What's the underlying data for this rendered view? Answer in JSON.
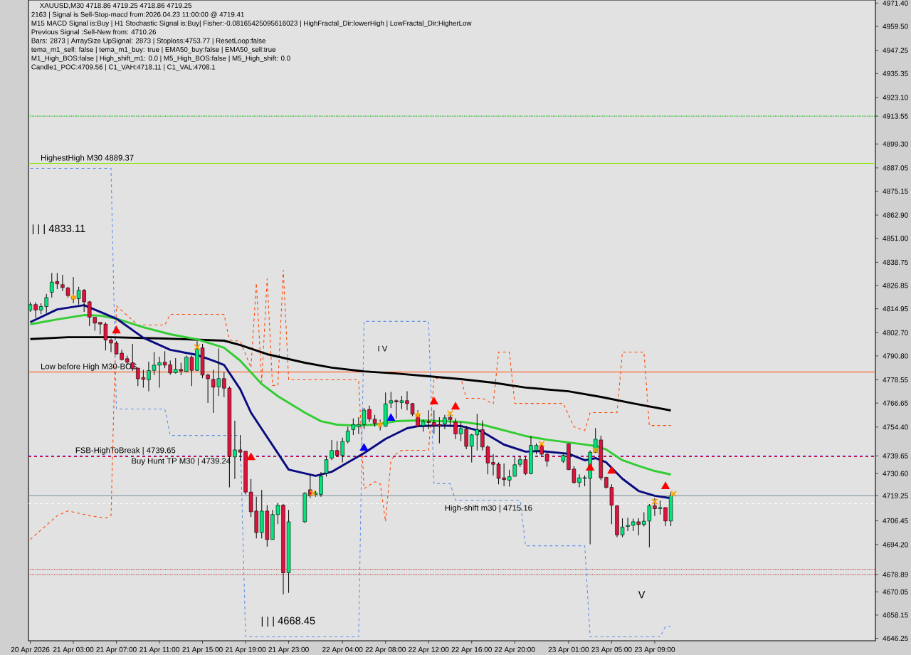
{
  "chart_data": {
    "type": "candlestick",
    "title": "XAUUSD,M30 4718.86 4719.25 4718.86 4719.25",
    "annotations": [
      "2163 | Signal is Sell-Stop-macd from:2026.04.23 11:00:00 @ 4719.41",
      "M15 MACD Signal is:Buy | H1 Stochastic Signal is:Buy| Fisher:-0.08165425095616023 | HighFractal_Dir:lowerHigh | LowFractal_Dir:HigherLow",
      "Previous Signal :Sell-New from: 4710.26",
      "Bars: 2873 | ArraySize UpSignal: 2873 | Stoploss:4753.77 | ResetLoop:false",
      "tema_m1_sell: false | tema_m1_buy: true | EMA50_buy:false | EMA50_sell:true",
      "M1_High_BOS:false | High_shift_m1: 0.0 | M5_High_BOS:false | M5_High_shift: 0.0",
      "Candle1_POC:4709.56 | C1_VAH:4718.11 | C1_VAL:4708.1",
      "| | | 4833.11",
      "| | | 4668.45",
      "I V",
      "V"
    ],
    "x": [
      "2026-04-20T23:00",
      "2026-04-20T23:30",
      "2026-04-21T00:00",
      "2026-04-21T00:30",
      "2026-04-21T01:00",
      "2026-04-21T01:30",
      "2026-04-21T02:00",
      "2026-04-21T02:30",
      "2026-04-21T03:00",
      "2026-04-21T03:30",
      "2026-04-21T04:00",
      "2026-04-21T04:30",
      "2026-04-21T05:00",
      "2026-04-21T05:30",
      "2026-04-21T06:00",
      "2026-04-21T06:30",
      "2026-04-21T07:00",
      "2026-04-21T07:30",
      "2026-04-21T08:00",
      "2026-04-21T08:30",
      "2026-04-21T09:00",
      "2026-04-21T09:30",
      "2026-04-21T10:00",
      "2026-04-21T10:30",
      "2026-04-21T11:00",
      "2026-04-21T11:30",
      "2026-04-21T12:00",
      "2026-04-21T12:30",
      "2026-04-21T13:00",
      "2026-04-21T13:30",
      "2026-04-21T14:00",
      "2026-04-21T14:30",
      "2026-04-21T15:00",
      "2026-04-21T15:30",
      "2026-04-21T16:00",
      "2026-04-21T16:30",
      "2026-04-21T17:00",
      "2026-04-21T17:30",
      "2026-04-21T18:00",
      "2026-04-21T18:30",
      "2026-04-21T19:00",
      "2026-04-21T19:30",
      "2026-04-21T20:00",
      "2026-04-21T20:30",
      "2026-04-21T21:00",
      "2026-04-21T21:30",
      "2026-04-21T22:00",
      "2026-04-21T22:30",
      "2026-04-21T23:00",
      "2026-04-22T00:30",
      "2026-04-22T01:00",
      "2026-04-22T01:30",
      "2026-04-22T02:00",
      "2026-04-22T02:30",
      "2026-04-22T03:00",
      "2026-04-22T03:30",
      "2026-04-22T04:00",
      "2026-04-22T04:30",
      "2026-04-22T05:00",
      "2026-04-22T05:30",
      "2026-04-22T06:00",
      "2026-04-22T06:30",
      "2026-04-22T07:00",
      "2026-04-22T07:30",
      "2026-04-22T08:00",
      "2026-04-22T08:30",
      "2026-04-22T09:00",
      "2026-04-22T09:30",
      "2026-04-22T10:00",
      "2026-04-22T10:30",
      "2026-04-22T11:00",
      "2026-04-22T11:30",
      "2026-04-22T12:00",
      "2026-04-22T12:30",
      "2026-04-22T13:00",
      "2026-04-22T13:30",
      "2026-04-22T14:00",
      "2026-04-22T14:30",
      "2026-04-22T15:00",
      "2026-04-22T15:30",
      "2026-04-22T16:00",
      "2026-04-22T16:30",
      "2026-04-22T17:00",
      "2026-04-22T17:30",
      "2026-04-22T18:00",
      "2026-04-22T18:30",
      "2026-04-22T19:00",
      "2026-04-22T19:30",
      "2026-04-22T20:00",
      "2026-04-22T20:30",
      "2026-04-22T21:00",
      "2026-04-22T21:30",
      "2026-04-22T22:00",
      "2026-04-22T22:30",
      "2026-04-22T23:00",
      "2026-04-23T00:30",
      "2026-04-23T01:00",
      "2026-04-23T01:30",
      "2026-04-23T02:00",
      "2026-04-23T02:30",
      "2026-04-23T03:00",
      "2026-04-23T03:30",
      "2026-04-23T04:00",
      "2026-04-23T04:30",
      "2026-04-23T05:00",
      "2026-04-23T05:30",
      "2026-04-23T06:00",
      "2026-04-23T06:30",
      "2026-04-23T07:00",
      "2026-04-23T07:30",
      "2026-04-23T08:00",
      "2026-04-23T08:30",
      "2026-04-23T09:00",
      "2026-04-23T09:30",
      "2026-04-23T10:00",
      "2026-04-23T10:30"
    ],
    "ohlc": [
      [
        4814.1,
        4818.3,
        4813.4,
        4817.1
      ],
      [
        4817.1,
        4818.3,
        4810.4,
        4814.3
      ],
      [
        4814.3,
        4817.7,
        4812.2,
        4816.1
      ],
      [
        4816.1,
        4822.6,
        4812.8,
        4820.7
      ],
      [
        4823.4,
        4833.2,
        4820.7,
        4828.6
      ],
      [
        4828.9,
        4833.2,
        4825.0,
        4827.7
      ],
      [
        4827.3,
        4832.3,
        4824.0,
        4825.8
      ],
      [
        4825.6,
        4826.2,
        4820.7,
        4821.7
      ],
      [
        4821.3,
        4831.1,
        4817.7,
        4820.1
      ],
      [
        4820.1,
        4826.2,
        4817.1,
        4824.4
      ],
      [
        4824.4,
        4825.0,
        4813.4,
        4818.5
      ],
      [
        4818.5,
        4818.9,
        4806.1,
        4810.6
      ],
      [
        4810.6,
        4810.6,
        4803.7,
        4807.6
      ],
      [
        4808.0,
        4808.0,
        4801.9,
        4807.1
      ],
      [
        4807.1,
        4808.0,
        4793.6,
        4798.9
      ],
      [
        4798.9,
        4799.7,
        4792.8,
        4797.4
      ],
      [
        4797.4,
        4798.3,
        4791.6,
        4791.8
      ],
      [
        4792.2,
        4794.0,
        4788.5,
        4788.9
      ],
      [
        4789.4,
        4791.0,
        4786.1,
        4787.6
      ],
      [
        4787.3,
        4797.0,
        4783.1,
        4784.3
      ],
      [
        4784.5,
        4784.9,
        4775.4,
        4779.1
      ],
      [
        4779.7,
        4783.7,
        4774.6,
        4778.8
      ],
      [
        4778.5,
        4787.9,
        4772.7,
        4783.3
      ],
      [
        4783.4,
        4792.8,
        4781.0,
        4786.1
      ],
      [
        4786.1,
        4790.4,
        4774.6,
        4787.3
      ],
      [
        4787.6,
        4793.2,
        4784.5,
        4786.1
      ],
      [
        4786.3,
        4788.5,
        4781.2,
        4782.1
      ],
      [
        4782.2,
        4789.7,
        4781.8,
        4783.9
      ],
      [
        4783.9,
        4787.3,
        4780.9,
        4783.1
      ],
      [
        4782.8,
        4791.0,
        4782.5,
        4790.1
      ],
      [
        4790.1,
        4791.0,
        4775.4,
        4783.4
      ],
      [
        4783.4,
        4798.3,
        4783.1,
        4794.4
      ],
      [
        4794.9,
        4797.0,
        4779.4,
        4781.0
      ],
      [
        4781.0,
        4781.8,
        4766.7,
        4779.1
      ],
      [
        4778.8,
        4783.7,
        4761.6,
        4774.8
      ],
      [
        4775.0,
        4794.6,
        4770.3,
        4779.2
      ],
      [
        4779.2,
        4782.5,
        4769.7,
        4774.3
      ],
      [
        4774.3,
        4775.2,
        4723.5,
        4739.3
      ],
      [
        4739.1,
        4757.6,
        4727.8,
        4742.7
      ],
      [
        4742.7,
        4750.3,
        4736.9,
        4741.5
      ],
      [
        4742.0,
        4742.0,
        4719.9,
        4721.1
      ],
      [
        4721.1,
        4727.8,
        4708.3,
        4711.0
      ],
      [
        4711.4,
        4718.7,
        4697.4,
        4700.4
      ],
      [
        4700.4,
        4722.3,
        4697.4,
        4711.4
      ],
      [
        4711.4,
        4714.4,
        4693.2,
        4696.8
      ],
      [
        4696.8,
        4712.0,
        4696.8,
        4709.6
      ],
      [
        4709.6,
        4715.6,
        4704.7,
        4714.4
      ],
      [
        4714.4,
        4715.0,
        4668.8,
        4679.8
      ],
      [
        4679.8,
        4712.0,
        4669.5,
        4705.9
      ],
      [
        4705.9,
        4721.1,
        4705.3,
        4720.5
      ],
      [
        4722.3,
        4729.6,
        4718.1,
        4719.3
      ],
      [
        4719.9,
        4721.7,
        4718.7,
        4720.7
      ],
      [
        4719.9,
        4731.4,
        4718.7,
        4729.2
      ],
      [
        4730.8,
        4739.3,
        4729.0,
        4737.7
      ],
      [
        4738.5,
        4747.8,
        4737.5,
        4742.4
      ],
      [
        4742.4,
        4747.2,
        4739.3,
        4739.9
      ],
      [
        4739.9,
        4749.0,
        4736.3,
        4747.0
      ],
      [
        4747.0,
        4754.5,
        4746.0,
        4752.4
      ],
      [
        4753.1,
        4758.8,
        4750.3,
        4755.7
      ],
      [
        4754.5,
        4759.4,
        4750.9,
        4755.7
      ],
      [
        4755.7,
        4764.2,
        4753.3,
        4763.0
      ],
      [
        4763.4,
        4765.4,
        4756.9,
        4758.5
      ],
      [
        4758.4,
        4760.6,
        4754.5,
        4756.3
      ],
      [
        4756.3,
        4758.2,
        4752.7,
        4755.5
      ],
      [
        4754.8,
        4772.1,
        4754.5,
        4766.3
      ],
      [
        4766.7,
        4772.4,
        4764.2,
        4767.9
      ],
      [
        4767.9,
        4768.5,
        4758.8,
        4767.3
      ],
      [
        4766.9,
        4770.3,
        4763.6,
        4767.9
      ],
      [
        4767.9,
        4772.7,
        4763.0,
        4766.4
      ],
      [
        4766.4,
        4766.7,
        4760.0,
        4761.0
      ],
      [
        4760.8,
        4763.0,
        4754.5,
        4754.8
      ],
      [
        4755.1,
        4758.2,
        4752.1,
        4757.2
      ],
      [
        4757.2,
        4763.0,
        4753.3,
        4756.7
      ],
      [
        4756.7,
        4763.0,
        4750.9,
        4755.1
      ],
      [
        4755.7,
        4759.4,
        4746.0,
        4754.9
      ],
      [
        4756.0,
        4760.6,
        4753.3,
        4759.1
      ],
      [
        4759.4,
        4760.6,
        4754.5,
        4758.2
      ],
      [
        4756.9,
        4758.8,
        4748.2,
        4750.9
      ],
      [
        4750.9,
        4756.9,
        4747.2,
        4753.7
      ],
      [
        4753.3,
        4755.1,
        4743.0,
        4744.5
      ],
      [
        4744.5,
        4750.9,
        4736.3,
        4750.4
      ],
      [
        4750.4,
        4761.2,
        4742.4,
        4753.1
      ],
      [
        4753.1,
        4757.8,
        4742.4,
        4744.2
      ],
      [
        4744.2,
        4745.0,
        4730.2,
        4736.0
      ],
      [
        4736.3,
        4740.5,
        4729.6,
        4735.3
      ],
      [
        4735.4,
        4736.3,
        4725.1,
        4728.1
      ],
      [
        4728.4,
        4735.7,
        4724.1,
        4727.5
      ],
      [
        4727.2,
        4732.6,
        4723.9,
        4729.0
      ],
      [
        4729.2,
        4739.3,
        4729.0,
        4735.1
      ],
      [
        4735.3,
        4739.3,
        4733.9,
        4737.7
      ],
      [
        4737.7,
        4739.3,
        4729.8,
        4730.6
      ],
      [
        4730.6,
        4749.7,
        4730.2,
        4745.0
      ],
      [
        4742.4,
        4746.0,
        4740.5,
        4745.0
      ],
      [
        4745.0,
        4746.0,
        4739.3,
        4740.5
      ],
      [
        4740.5,
        4741.1,
        4734.1,
        4736.9
      ],
      [
        4736.9,
        4741.1,
        4736.0,
        4739.9
      ],
      [
        4745.8,
        4746.0,
        4732.4,
        4732.6
      ],
      [
        4732.9,
        4734.5,
        4725.4,
        4726.0
      ],
      [
        4726.0,
        4730.2,
        4723.5,
        4728.4
      ],
      [
        4728.1,
        4729.6,
        4724.1,
        4728.5
      ],
      [
        4728.1,
        4742.4,
        4694.4,
        4741.5
      ],
      [
        4741.5,
        4753.9,
        4741.1,
        4748.2
      ],
      [
        4747.8,
        4750.0,
        4727.2,
        4728.4
      ],
      [
        4728.6,
        4729.0,
        4722.9,
        4723.5
      ],
      [
        4723.5,
        4725.1,
        4704.7,
        4714.4
      ],
      [
        4714.1,
        4714.4,
        4698.0,
        4699.2
      ],
      [
        4699.2,
        4707.7,
        4698.0,
        4703.2
      ],
      [
        4703.5,
        4708.0,
        4701.1,
        4704.1
      ],
      [
        4704.1,
        4707.5,
        4701.1,
        4705.9
      ],
      [
        4705.9,
        4707.7,
        4698.9,
        4704.5
      ],
      [
        4704.5,
        4710.8,
        4703.5,
        4706.2
      ],
      [
        4706.3,
        4715.0,
        4692.8,
        4714.1
      ],
      [
        4714.1,
        4718.1,
        4708.9,
        4712.6
      ],
      [
        4712.6,
        4716.8,
        4709.6,
        4713.2
      ],
      [
        4713.2,
        4713.2,
        4703.7,
        4706.3
      ],
      [
        4706.3,
        4721.1,
        4703.7,
        4719.25
      ]
    ],
    "series": [
      {
        "type": "line",
        "color": "#FF4500",
        "line_style": "dashed",
        "x": [
          "2026-04-20T23:00",
          "2026-04-21T00:00",
          "2026-04-21T01:30",
          "2026-04-21T02:30",
          "2026-04-21T04:30",
          "2026-04-21T06:00",
          "2026-04-21T06:30",
          "2026-04-21T07:00",
          "2026-04-21T09:00",
          "2026-04-21T11:30",
          "2026-04-21T12:00",
          "2026-04-21T17:00",
          "2026-04-21T17:30",
          "2026-04-21T18:30",
          "2026-04-21T19:30",
          "2026-04-21T20:00",
          "2026-04-21T20:30",
          "2026-04-21T21:00",
          "2026-04-21T21:30",
          "2026-04-21T22:00",
          "2026-04-21T22:30",
          "2026-04-21T23:00",
          "2026-04-22T05:30",
          "2026-04-22T06:00",
          "2026-04-22T07:00",
          "2026-04-22T07:30",
          "2026-04-22T08:00",
          "2026-04-22T08:30",
          "2026-04-22T09:00",
          "2026-04-22T09:30",
          "2026-04-22T12:00",
          "2026-04-22T12:30",
          "2026-04-22T15:00",
          "2026-04-22T15:30",
          "2026-04-22T17:00",
          "2026-04-22T18:00",
          "2026-04-22T18:30",
          "2026-04-22T19:30",
          "2026-04-22T20:00",
          "2026-04-23T00:30",
          "2026-04-23T01:30",
          "2026-04-23T02:30",
          "2026-04-23T03:00",
          "2026-04-23T05:30",
          "2026-04-23T06:00",
          "2026-04-23T08:00",
          "2026-04-23T08:30",
          "2026-04-23T10:30"
        ],
        "values": [
          4696.9,
          4701.7,
          4709.0,
          4711.5,
          4709.0,
          4707.9,
          4709.0,
          4816.5,
          4806.6,
          4806.6,
          4812.1,
          4812.1,
          4799.0,
          4798.3,
          4784.8,
          4828.1,
          4777.5,
          4830.3,
          4775.7,
          4775.7,
          4834.7,
          4778.6,
          4778.6,
          4722.8,
          4726.4,
          4725.4,
          4706.0,
          4737.4,
          4740.7,
          4742.5,
          4742.5,
          4779.3,
          4779.3,
          4769.1,
          4769.1,
          4766.2,
          4792.8,
          4792.8,
          4766.5,
          4766.5,
          4754.5,
          4752.7,
          4761.8,
          4761.8,
          4792.8,
          4792.8,
          4755.2,
          4755.2
        ]
      },
      {
        "type": "line",
        "color": "#5B8FE8",
        "line_style": "dashed",
        "x": [
          "2026-04-20T23:00",
          "2026-04-21T06:30",
          "2026-04-21T07:00",
          "2026-04-21T11:30",
          "2026-04-21T12:00",
          "2026-04-21T18:30",
          "2026-04-21T19:00",
          "2026-04-22T05:30",
          "2026-04-22T06:00",
          "2026-04-22T12:00",
          "2026-04-22T12:30",
          "2026-04-22T14:00",
          "2026-04-22T14:30",
          "2026-04-22T20:30",
          "2026-04-22T21:00",
          "2026-04-23T02:30",
          "2026-04-23T03:00",
          "2026-04-23T09:30",
          "2026-04-23T10:00",
          "2026-04-23T10:30"
        ],
        "values": [
          4886.8,
          4886.8,
          4763.6,
          4763.6,
          4750.1,
          4750.1,
          4647.0,
          4647.0,
          4808.5,
          4808.5,
          4725.4,
          4725.4,
          4717.0,
          4717.0,
          4693.6,
          4693.6,
          4647.0,
          4647.0,
          4652.4,
          4652.4
        ]
      },
      {
        "type": "line",
        "color": "#000000",
        "x": [
          "2026-04-20T23:00",
          "2026-04-21T02:30",
          "2026-04-21T06:30",
          "2026-04-21T11:30",
          "2026-04-21T17:00",
          "2026-04-21T18:30",
          "2026-04-21T21:00",
          "2026-04-22T00:30",
          "2026-04-22T03:00",
          "2026-04-22T06:00",
          "2026-04-22T09:00",
          "2026-04-22T12:00",
          "2026-04-22T15:00",
          "2026-04-22T18:00",
          "2026-04-22T21:00",
          "2026-04-23T01:00",
          "2026-04-23T04:00",
          "2026-04-23T07:00",
          "2026-04-23T10:30"
        ],
        "values": [
          4799.4,
          4800.4,
          4800.4,
          4799.7,
          4798.6,
          4796.4,
          4791.7,
          4787.3,
          4784.8,
          4782.9,
          4781.8,
          4780.4,
          4778.9,
          4777.1,
          4774.6,
          4772.7,
          4769.8,
          4766.5,
          4762.9
        ]
      },
      {
        "type": "line",
        "color": "#32CD32",
        "x": [
          "2026-04-20T23:00",
          "2026-04-21T01:30",
          "2026-04-21T04:00",
          "2026-04-21T05:30",
          "2026-04-21T07:00",
          "2026-04-21T09:30",
          "2026-04-21T12:00",
          "2026-04-21T14:30",
          "2026-04-21T17:00",
          "2026-04-21T18:30",
          "2026-04-21T20:30",
          "2026-04-21T22:00",
          "2026-04-22T00:30",
          "2026-04-22T02:00",
          "2026-04-22T03:30",
          "2026-04-22T05:00",
          "2026-04-22T07:00",
          "2026-04-22T09:00",
          "2026-04-22T11:00",
          "2026-04-22T13:00",
          "2026-04-22T15:00",
          "2026-04-22T17:00",
          "2026-04-22T19:00",
          "2026-04-22T21:00",
          "2026-04-22T23:00",
          "2026-04-23T02:00",
          "2026-04-23T03:30",
          "2026-04-23T04:30",
          "2026-04-23T06:00",
          "2026-04-23T07:30",
          "2026-04-23T09:00",
          "2026-04-23T10:30"
        ],
        "values": [
          4807.0,
          4809.5,
          4811.7,
          4811.4,
          4809.9,
          4805.5,
          4801.9,
          4799.3,
          4795.0,
          4788.4,
          4776.4,
          4770.2,
          4761.8,
          4757.4,
          4755.6,
          4755.2,
          4755.6,
          4757.4,
          4757.8,
          4757.4,
          4757.1,
          4755.6,
          4752.7,
          4749.8,
          4747.9,
          4745.8,
          4744.7,
          4742.9,
          4737.4,
          4734.5,
          4731.9,
          4730.1
        ]
      },
      {
        "type": "line",
        "color": "#0A0A80",
        "x": [
          "2026-04-20T23:00",
          "2026-04-21T01:30",
          "2026-04-21T04:00",
          "2026-04-21T07:00",
          "2026-04-21T09:30",
          "2026-04-21T12:00",
          "2026-04-21T14:30",
          "2026-04-21T16:00",
          "2026-04-21T17:00",
          "2026-04-21T18:30",
          "2026-04-21T19:30",
          "2026-04-21T20:30",
          "2026-04-21T22:00",
          "2026-04-21T23:00",
          "2026-04-22T01:30",
          "2026-04-22T03:00",
          "2026-04-22T04:30",
          "2026-04-22T06:00",
          "2026-04-22T08:00",
          "2026-04-22T10:00",
          "2026-04-22T11:00",
          "2026-04-22T13:00",
          "2026-04-22T15:00",
          "2026-04-22T17:00",
          "2026-04-22T19:00",
          "2026-04-22T21:00",
          "2026-04-22T22:30",
          "2026-04-23T01:00",
          "2026-04-23T02:30",
          "2026-04-23T03:30",
          "2026-04-23T04:30",
          "2026-04-23T06:00",
          "2026-04-23T07:30",
          "2026-04-23T09:00",
          "2026-04-23T10:30"
        ],
        "values": [
          4808.1,
          4814.6,
          4816.8,
          4809.9,
          4800.1,
          4793.9,
          4791.3,
          4788.4,
          4786.2,
          4773.8,
          4761.8,
          4753.4,
          4741.0,
          4732.6,
          4729.4,
          4731.5,
          4736.3,
          4741.0,
          4748.3,
          4753.8,
          4754.9,
          4755.2,
          4754.9,
          4752.0,
          4745.4,
          4741.8,
          4742.1,
          4740.7,
          4737.4,
          4738.5,
          4736.3,
          4727.9,
          4721.7,
          4719.2,
          4718.0
        ]
      },
      {
        "type": "scatter",
        "color": "#FF0000",
        "marker": "triangle",
        "x": [
          "2026-04-21T07:00",
          "2026-04-21T19:30",
          "2026-04-22T12:30",
          "2026-04-22T14:30",
          "2026-04-23T03:00",
          "2026-04-23T05:00",
          "2026-04-23T10:00"
        ],
        "values": [
          4803.7,
          4738.8,
          4767.3,
          4764.7,
          4733.4,
          4731.9,
          4723.9
        ]
      },
      {
        "type": "scatter",
        "color": "#0000FF",
        "marker": "triangle",
        "x": [
          "2026-04-22T06:00",
          "2026-04-22T08:30"
        ],
        "values": [
          4743.6,
          4758.9
        ]
      },
      {
        "type": "scatter",
        "color": "#FFA500",
        "marker": "star",
        "x": [
          "2026-04-21T03:00",
          "2026-04-22T07:30",
          "2026-04-22T11:00"
        ],
        "values": [
          4820.9,
          4755.6,
          4760.7
        ]
      },
      {
        "type": "scatter",
        "color": "#FFA500",
        "marker": "cross",
        "x": [
          "2026-04-21T14:30",
          "2026-04-22T01:15",
          "2026-04-22T14:00",
          "2026-04-22T22:30",
          "2026-04-23T03:30",
          "2026-04-23T09:00",
          "2026-04-23T10:45"
        ],
        "values": [
          4795.3,
          4720.6,
          4761.4,
          4745.8,
          4742.5,
          4716.2,
          4720.3
        ]
      }
    ],
    "ref_lines": [
      {
        "axis": "y",
        "value": 4913.55,
        "color": "#00B000",
        "line_style": "dotted"
      },
      {
        "axis": "y",
        "value": 4889.37,
        "label": "HighestHigh M30 4889.37",
        "color": "#8CE600",
        "line_style": "solid"
      },
      {
        "axis": "y",
        "value": 4782.6,
        "label": "Low before High M30-BOS",
        "color": "#FF4500",
        "line_style": "solid"
      },
      {
        "axis": "y",
        "value": 4739.65,
        "label": "FSB-HighToBreak | 4739.65",
        "color": "#0000FF",
        "line_style": "dashed"
      },
      {
        "axis": "y",
        "value": 4739.24,
        "label": "Buy Hunt TP M30 | 4739.24",
        "color": "#FF0000",
        "line_style": "dashed"
      },
      {
        "axis": "y",
        "value": 4719.25,
        "color": "#778899",
        "line_style": "solid"
      },
      {
        "axis": "y",
        "value": 4715.16,
        "label": "High-shift m30 | 4715.16",
        "color": "#FFFFFF",
        "line_style": "dashed"
      },
      {
        "axis": "y",
        "value": 4681.6,
        "color": "#B22222",
        "line_style": "dotted"
      },
      {
        "axis": "y",
        "value": 4678.89,
        "color": "#B22222",
        "line_style": "dotted"
      }
    ],
    "xlim": [
      "2026-04-20T22:50",
      "2026-04-24T05:30"
    ],
    "xticks": [
      {
        "value": "2026-04-20T23:00",
        "label": "20 Apr 2026"
      },
      {
        "value": "2026-04-21T03:00",
        "label": "21 Apr 03:00"
      },
      {
        "value": "2026-04-21T07:00",
        "label": "21 Apr 07:00"
      },
      {
        "value": "2026-04-21T11:00",
        "label": "21 Apr 11:00"
      },
      {
        "value": "2026-04-21T15:00",
        "label": "21 Apr 15:00"
      },
      {
        "value": "2026-04-21T19:00",
        "label": "21 Apr 19:00"
      },
      {
        "value": "2026-04-21T23:00",
        "label": "21 Apr 23:00"
      },
      {
        "value": "2026-04-22T04:00",
        "label": "22 Apr 04:00"
      },
      {
        "value": "2026-04-22T08:00",
        "label": "22 Apr 08:00"
      },
      {
        "value": "2026-04-22T12:00",
        "label": "22 Apr 12:00"
      },
      {
        "value": "2026-04-22T16:00",
        "label": "22 Apr 16:00"
      },
      {
        "value": "2026-04-22T20:00",
        "label": "22 Apr 20:00"
      },
      {
        "value": "2026-04-23T01:00",
        "label": "23 Apr 01:00"
      },
      {
        "value": "2026-04-23T05:00",
        "label": "23 Apr 05:00"
      },
      {
        "value": "2026-04-23T09:00",
        "label": "23 Apr 09:00"
      }
    ],
    "ylim": [
      4645,
      4973
    ],
    "yticks": [
      {
        "value": 4971.4,
        "label": "4971.40"
      },
      {
        "value": 4959.5,
        "label": "4959.50"
      },
      4947.25,
      4935.35,
      {
        "value": 4923.1,
        "label": "4923.10"
      },
      4913.55,
      {
        "value": 4899.3,
        "label": "4899.30"
      },
      4887.05,
      4875.15,
      {
        "value": 4862.9,
        "label": "4862.90"
      },
      {
        "value": 4851.0,
        "label": "4851.00"
      },
      4838.75,
      4826.85,
      4814.95,
      {
        "value": 4802.7,
        "label": "4802.70"
      },
      {
        "value": 4790.8,
        "label": "4790.80"
      },
      4778.55,
      4766.65,
      {
        "value": 4754.4,
        "label": "4754.40"
      },
      4739.65,
      {
        "value": 4730.6,
        "label": "4730.60"
      },
      4719.25,
      4706.45,
      {
        "value": 4694.2,
        "label": "4694.20"
      },
      4678.89,
      4670.05,
      4658.15,
      4646.25
    ]
  }
}
